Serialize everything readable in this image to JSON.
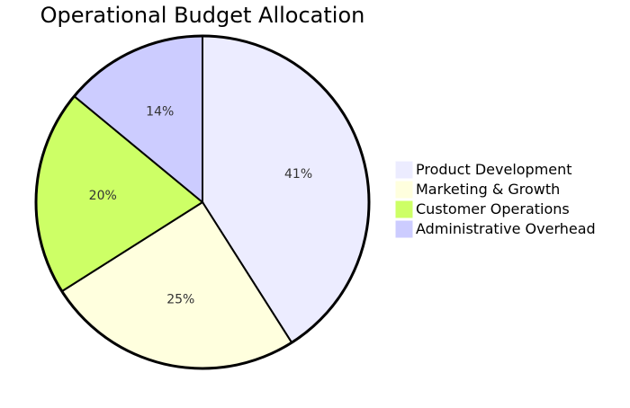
{
  "chart_data": {
    "type": "pie",
    "title": "Operational Budget Allocation",
    "slices": [
      {
        "label": "Product Development",
        "value": 41,
        "display": "41%",
        "color": "#ECECFF"
      },
      {
        "label": "Marketing & Growth",
        "value": 25,
        "display": "25%",
        "color": "#FFFFDE"
      },
      {
        "label": "Customer Operations",
        "value": 20,
        "display": "20%",
        "color": "#CDFF66"
      },
      {
        "label": "Administrative Overhead",
        "value": 14,
        "display": "14%",
        "color": "#CCCCFF"
      }
    ],
    "legend_position": "right"
  }
}
